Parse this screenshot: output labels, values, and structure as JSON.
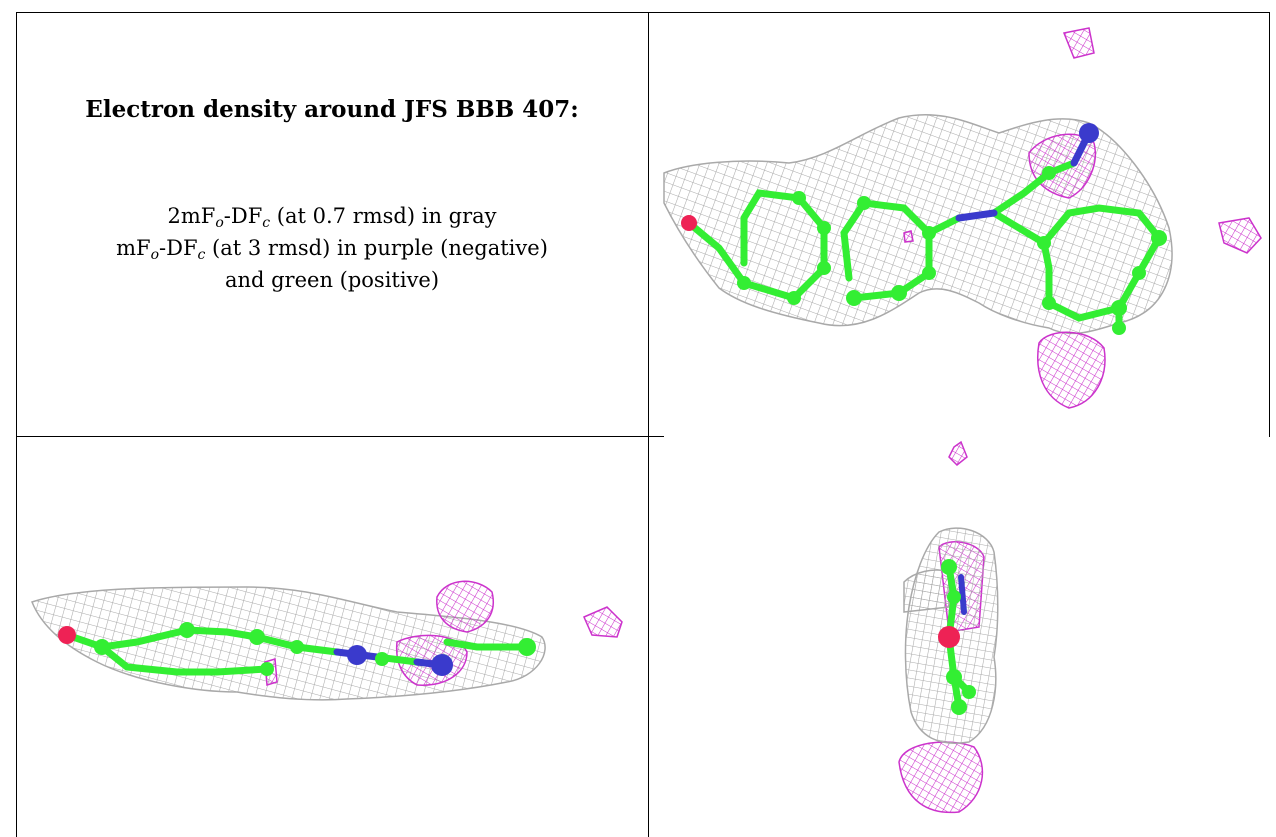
{
  "caption": {
    "title": "Electron density around JFS BBB 407:",
    "line1": {
      "prefix": "2mF",
      "sub1": "o",
      "mid": "-DF",
      "sub2": "c",
      "suffix": " (at 0.7 rmsd) in gray"
    },
    "line2": {
      "prefix": "mF",
      "sub1": "o",
      "mid": "-DF",
      "sub2": "c",
      "suffix": " (at 3 rmsd) in purple (negative)"
    },
    "line3": "and green (positive)"
  },
  "colors": {
    "mesh_gray": "#a9a9a9",
    "mesh_purple": "#cc33cc",
    "carbon": "#33ee33",
    "nitrogen": "#3a3acc",
    "oxygen": "#ee2255"
  },
  "panels": [
    "top-view",
    "side-view",
    "end-view"
  ]
}
